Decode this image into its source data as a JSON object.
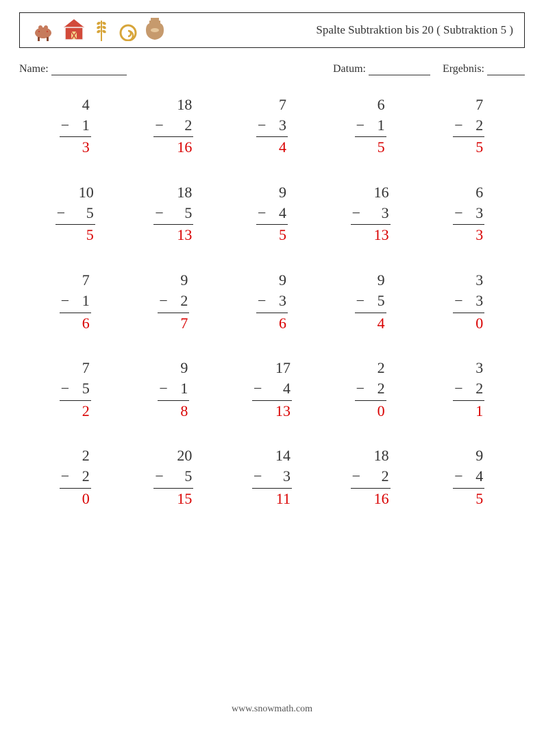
{
  "header": {
    "title": "Spalte Subtraktion bis 20 ( Subtraktion 5 )"
  },
  "meta": {
    "name_label": "Name:",
    "name_blank_width": 110,
    "date_label": "Datum:",
    "date_blank_width": 90,
    "result_label": "Ergebnis:",
    "result_blank_width": 55
  },
  "style": {
    "background_color": "#ffffff",
    "text_color": "#333333",
    "answer_color": "#d90000",
    "line_color": "#222222",
    "font_family": "Georgia, 'Times New Roman', serif",
    "problem_font_size": 22,
    "meta_font_size": 16,
    "title_font_size": 17,
    "cols": 5,
    "rows": 5,
    "row_gap": 36,
    "problem_width": 80
  },
  "problems": [
    {
      "a": 4,
      "b": 1,
      "ans": 3
    },
    {
      "a": 18,
      "b": 2,
      "ans": 16
    },
    {
      "a": 7,
      "b": 3,
      "ans": 4
    },
    {
      "a": 6,
      "b": 1,
      "ans": 5
    },
    {
      "a": 7,
      "b": 2,
      "ans": 5
    },
    {
      "a": 10,
      "b": 5,
      "ans": 5
    },
    {
      "a": 18,
      "b": 5,
      "ans": 13
    },
    {
      "a": 9,
      "b": 4,
      "ans": 5
    },
    {
      "a": 16,
      "b": 3,
      "ans": 13
    },
    {
      "a": 6,
      "b": 3,
      "ans": 3
    },
    {
      "a": 7,
      "b": 1,
      "ans": 6
    },
    {
      "a": 9,
      "b": 2,
      "ans": 7
    },
    {
      "a": 9,
      "b": 3,
      "ans": 6
    },
    {
      "a": 9,
      "b": 5,
      "ans": 4
    },
    {
      "a": 3,
      "b": 3,
      "ans": 0
    },
    {
      "a": 7,
      "b": 5,
      "ans": 2
    },
    {
      "a": 9,
      "b": 1,
      "ans": 8
    },
    {
      "a": 17,
      "b": 4,
      "ans": 13
    },
    {
      "a": 2,
      "b": 2,
      "ans": 0
    },
    {
      "a": 3,
      "b": 2,
      "ans": 1
    },
    {
      "a": 2,
      "b": 2,
      "ans": 0
    },
    {
      "a": 20,
      "b": 5,
      "ans": 15
    },
    {
      "a": 14,
      "b": 3,
      "ans": 11
    },
    {
      "a": 18,
      "b": 2,
      "ans": 16
    },
    {
      "a": 9,
      "b": 4,
      "ans": 5
    }
  ],
  "icons": [
    {
      "name": "cow-icon",
      "emoji": "🐄",
      "color": "#c67b5c"
    },
    {
      "name": "barn-icon",
      "emoji": "🏠",
      "color": "#d24a3a"
    },
    {
      "name": "wheat-icon",
      "emoji": "🌾",
      "color": "#d7a53a"
    },
    {
      "name": "hay-icon",
      "emoji": "🐌",
      "color": "#d7a53a"
    },
    {
      "name": "jug-icon",
      "emoji": "🏺",
      "color": "#c69a6d"
    }
  ],
  "footer": {
    "text": "www.snowmath.com"
  }
}
